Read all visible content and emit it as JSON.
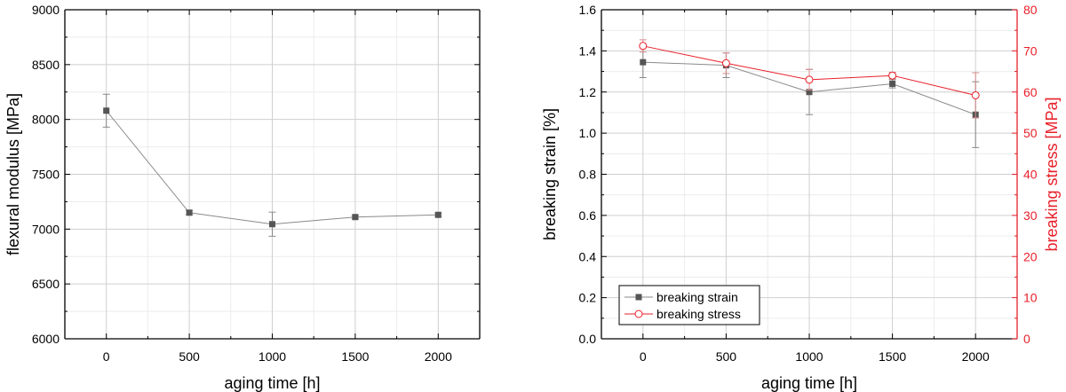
{
  "chart_data": [
    {
      "type": "line",
      "title": "",
      "xlabel": "aging time [h]",
      "ylabel": "flexural modulus [MPa]",
      "x": [
        0,
        500,
        1000,
        1500,
        2000
      ],
      "xlim": [
        -250,
        2250
      ],
      "xticks": [
        "0",
        "500",
        "1000",
        "1500",
        "2000"
      ],
      "ylim": [
        6000,
        9000
      ],
      "yticks": [
        "6000",
        "6500",
        "7000",
        "7500",
        "8000",
        "8500",
        "9000"
      ],
      "grid": true,
      "series": [
        {
          "values": [
            8080,
            7150,
            7045,
            7110,
            7130
          ],
          "errors": [
            150,
            20,
            110,
            15,
            15
          ],
          "color": "#555555",
          "marker": "square-filled"
        }
      ]
    },
    {
      "type": "line",
      "title": "",
      "xlabel": "aging time [h]",
      "ylabel": "breaking strain [%]",
      "ylabel_right": "breaking stress [MPa]",
      "x": [
        0,
        500,
        1000,
        1500,
        2000
      ],
      "xlim": [
        -250,
        2250
      ],
      "xticks": [
        "0",
        "500",
        "1000",
        "1500",
        "2000"
      ],
      "ylim": [
        0,
        1.6
      ],
      "yticks": [
        "0.0",
        "0.2",
        "0.4",
        "0.6",
        "0.8",
        "1.0",
        "1.2",
        "1.4",
        "1.6"
      ],
      "ylim_right": [
        0,
        80
      ],
      "yticks_right": [
        "0",
        "10",
        "20",
        "30",
        "40",
        "50",
        "60",
        "70",
        "80"
      ],
      "grid": true,
      "legend": "bottom-left",
      "series": [
        {
          "name": "breaking strain",
          "axis": "left",
          "values": [
            1.345,
            1.33,
            1.2,
            1.24,
            1.09
          ],
          "errors": [
            0.075,
            0.06,
            0.11,
            0.02,
            0.16
          ],
          "color": "#555555",
          "marker": "square-filled"
        },
        {
          "name": "breaking stress",
          "axis": "right",
          "values": [
            71.2,
            67.0,
            63.0,
            64.0,
            59.2
          ],
          "errors": [
            1.5,
            2.5,
            2.5,
            0.8,
            5.5
          ],
          "color": "#e8202a",
          "marker": "circle-open"
        }
      ]
    }
  ]
}
